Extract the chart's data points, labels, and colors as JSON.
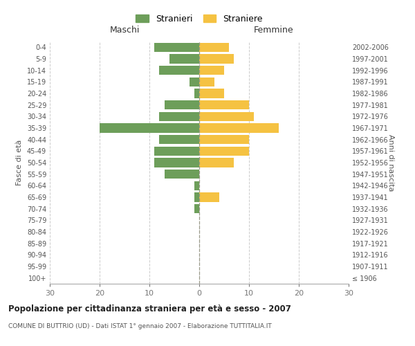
{
  "age_groups": [
    "100+",
    "95-99",
    "90-94",
    "85-89",
    "80-84",
    "75-79",
    "70-74",
    "65-69",
    "60-64",
    "55-59",
    "50-54",
    "45-49",
    "40-44",
    "35-39",
    "30-34",
    "25-29",
    "20-24",
    "15-19",
    "10-14",
    "5-9",
    "0-4"
  ],
  "birth_years": [
    "≤ 1906",
    "1907-1911",
    "1912-1916",
    "1917-1921",
    "1922-1926",
    "1927-1931",
    "1932-1936",
    "1937-1941",
    "1942-1946",
    "1947-1951",
    "1952-1956",
    "1957-1961",
    "1962-1966",
    "1967-1971",
    "1972-1976",
    "1977-1981",
    "1982-1986",
    "1987-1991",
    "1992-1996",
    "1997-2001",
    "2002-2006"
  ],
  "males": [
    0,
    0,
    0,
    0,
    0,
    0,
    1,
    1,
    1,
    7,
    9,
    9,
    8,
    20,
    8,
    7,
    1,
    2,
    8,
    6,
    9
  ],
  "females": [
    0,
    0,
    0,
    0,
    0,
    0,
    0,
    4,
    0,
    0,
    7,
    10,
    10,
    16,
    11,
    10,
    5,
    3,
    5,
    7,
    6
  ],
  "male_color": "#6d9e5a",
  "female_color": "#f5c242",
  "title": "Popolazione per cittadinanza straniera per età e sesso - 2007",
  "subtitle": "COMUNE DI BUTTRIO (UD) - Dati ISTAT 1° gennaio 2007 - Elaborazione TUTTITALIA.IT",
  "xlabel_left": "Maschi",
  "xlabel_right": "Femmine",
  "ylabel_left": "Fasce di età",
  "ylabel_right": "Anni di nascita",
  "legend_stranieri": "Stranieri",
  "legend_straniere": "Straniere",
  "xlim": 30,
  "background_color": "#ffffff",
  "grid_color": "#cccccc",
  "bar_height": 0.8,
  "dpi": 100,
  "figwidth": 6.0,
  "figheight": 5.0
}
